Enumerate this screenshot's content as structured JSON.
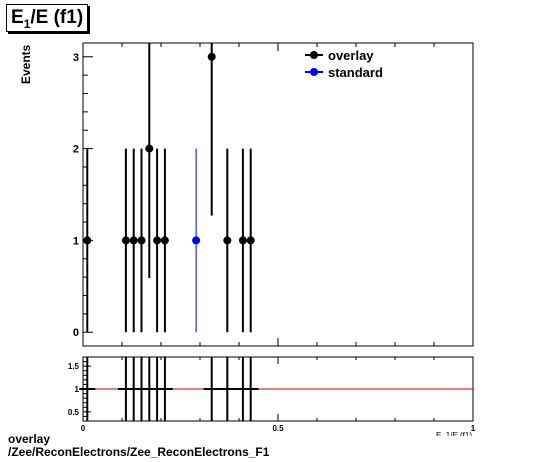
{
  "title": {
    "main": "E",
    "sub": "1",
    "rest": "/E (f1)"
  },
  "ylabel": "Events",
  "xlabel": "E_1/E (f1)",
  "caption": {
    "line1": "overlay",
    "line2": "/Zee/ReconElectrons/Zee_ReconElectrons_F1"
  },
  "chart_data": [
    {
      "type": "scatter",
      "panel": "main",
      "xlim": [
        0,
        1
      ],
      "ylim": [
        -0.15,
        3.15
      ],
      "yticks": [
        0,
        1,
        2,
        3
      ],
      "legend_position": "top-right",
      "series": [
        {
          "name": "overlay",
          "color": "#000000",
          "points": [
            {
              "x": 0.011,
              "y": 1,
              "err": 1
            },
            {
              "x": 0.11,
              "y": 1,
              "err": 1
            },
            {
              "x": 0.13,
              "y": 1,
              "err": 1
            },
            {
              "x": 0.15,
              "y": 1,
              "err": 1
            },
            {
              "x": 0.17,
              "y": 2,
              "err": 1.41
            },
            {
              "x": 0.19,
              "y": 1,
              "err": 1
            },
            {
              "x": 0.21,
              "y": 1,
              "err": 1
            },
            {
              "x": 0.33,
              "y": 3,
              "err": 1.73
            },
            {
              "x": 0.37,
              "y": 1,
              "err": 1
            },
            {
              "x": 0.41,
              "y": 1,
              "err": 1
            },
            {
              "x": 0.43,
              "y": 1,
              "err": 1
            }
          ]
        },
        {
          "name": "standard",
          "color": "#0000ff",
          "points": [
            {
              "x": 0.29,
              "y": 1,
              "err": 1
            }
          ]
        }
      ]
    },
    {
      "type": "scatter",
      "panel": "ratio",
      "xlim": [
        0,
        1
      ],
      "ylim": [
        0.3,
        1.7
      ],
      "yticks": [
        0.5,
        1,
        1.5
      ],
      "xticks": [
        0,
        0.5,
        1
      ],
      "xtick_labels": [
        "0",
        "0.5",
        "1"
      ],
      "reference_line": {
        "y": 1,
        "color": "#cc0000"
      },
      "points": [
        {
          "x": 0.011,
          "y": 1
        },
        {
          "x": 0.11,
          "y": 1
        },
        {
          "x": 0.13,
          "y": 1
        },
        {
          "x": 0.15,
          "y": 1
        },
        {
          "x": 0.17,
          "y": 1
        },
        {
          "x": 0.19,
          "y": 1
        },
        {
          "x": 0.21,
          "y": 1
        },
        {
          "x": 0.33,
          "y": 1
        },
        {
          "x": 0.37,
          "y": 1
        },
        {
          "x": 0.41,
          "y": 1
        },
        {
          "x": 0.43,
          "y": 1
        }
      ]
    }
  ]
}
